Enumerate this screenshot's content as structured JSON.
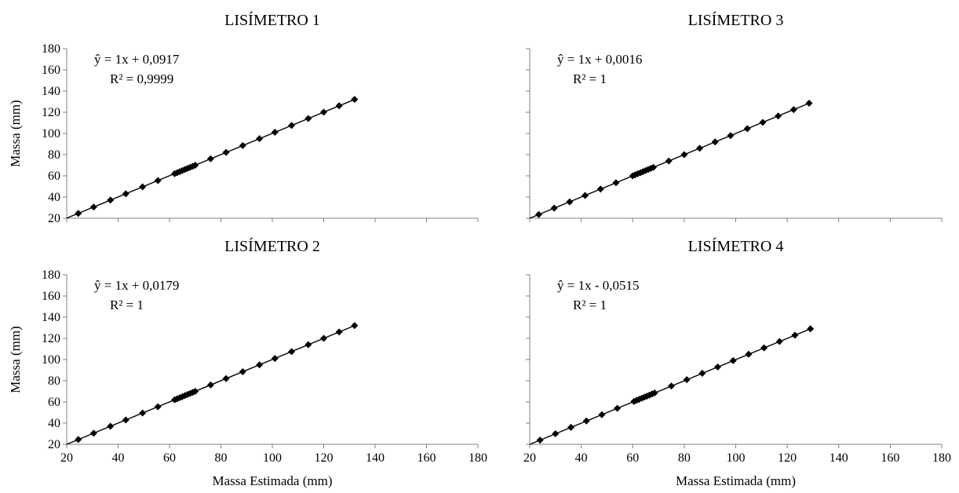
{
  "shared": {
    "ylabel": "Massa (mm)",
    "marker_color": "#000000",
    "line_color": "#000000"
  },
  "chart_data": [
    {
      "type": "scatter",
      "title": "LISÍMETRO 1",
      "equation": "ŷ = 1x + 0,0917",
      "r2": "R² = 0,9999",
      "xlabel": "",
      "ylabel": "Massa (mm)",
      "xlim": [
        20,
        180
      ],
      "ylim": [
        20,
        180
      ],
      "xticks": [
        20,
        40,
        60,
        80,
        100,
        120,
        140,
        160,
        180
      ],
      "yticks": [
        20,
        40,
        60,
        80,
        100,
        120,
        140,
        160,
        180
      ],
      "show_xtick_labels": false,
      "show_ytick_labels": true,
      "trendline": {
        "slope": 1,
        "intercept": 0.0917
      },
      "points": [
        [
          24.5,
          24.5
        ],
        [
          30.5,
          30.6
        ],
        [
          37,
          37.1
        ],
        [
          43,
          43.1
        ],
        [
          49.5,
          49.6
        ],
        [
          55.5,
          55.6
        ],
        [
          62,
          62
        ],
        [
          63,
          63
        ],
        [
          64,
          64
        ],
        [
          65,
          65
        ],
        [
          66,
          66
        ],
        [
          67,
          67
        ],
        [
          68,
          68
        ],
        [
          69,
          69
        ],
        [
          70,
          70
        ],
        [
          76,
          76.1
        ],
        [
          82,
          82.1
        ],
        [
          88.5,
          88.6
        ],
        [
          95,
          95.1
        ],
        [
          101,
          101.1
        ],
        [
          107.5,
          107.6
        ],
        [
          114,
          114.1
        ],
        [
          120,
          120.1
        ],
        [
          126,
          126.1
        ],
        [
          132,
          132.1
        ]
      ]
    },
    {
      "type": "scatter",
      "title": "LISÍMETRO 3",
      "equation": "ŷ = 1x + 0,0016",
      "r2": "R² = 1",
      "xlabel": "",
      "ylabel": "",
      "xlim": [
        20,
        180
      ],
      "ylim": [
        20,
        180
      ],
      "xticks": [
        20,
        40,
        60,
        80,
        100,
        120,
        140,
        160,
        180
      ],
      "yticks": [
        20,
        40,
        60,
        80,
        100,
        120,
        140,
        160,
        180
      ],
      "show_xtick_labels": false,
      "show_ytick_labels": false,
      "trendline": {
        "slope": 1,
        "intercept": 0.0016
      },
      "points": [
        [
          23.5,
          23.5
        ],
        [
          29.5,
          29.5
        ],
        [
          35.5,
          35.5
        ],
        [
          41.5,
          41.5
        ],
        [
          47.5,
          47.5
        ],
        [
          53.5,
          53.5
        ],
        [
          60,
          60
        ],
        [
          61,
          61
        ],
        [
          62,
          62
        ],
        [
          63,
          63
        ],
        [
          64,
          64
        ],
        [
          65,
          65
        ],
        [
          66,
          66
        ],
        [
          67,
          67
        ],
        [
          68,
          68
        ],
        [
          74,
          74
        ],
        [
          80,
          80
        ],
        [
          86,
          86
        ],
        [
          92,
          92
        ],
        [
          98,
          98
        ],
        [
          104.5,
          104.5
        ],
        [
          110.5,
          110.5
        ],
        [
          116.5,
          116.5
        ],
        [
          122.5,
          122.5
        ],
        [
          128.5,
          128.5
        ]
      ]
    },
    {
      "type": "scatter",
      "title": "LISÍMETRO 2",
      "equation": "ŷ = 1x + 0,0179",
      "r2": "R² = 1",
      "xlabel": "Massa Estimada (mm)",
      "ylabel": "Massa (mm)",
      "xlim": [
        20,
        180
      ],
      "ylim": [
        20,
        180
      ],
      "xticks": [
        20,
        40,
        60,
        80,
        100,
        120,
        140,
        160,
        180
      ],
      "yticks": [
        20,
        40,
        60,
        80,
        100,
        120,
        140,
        160,
        180
      ],
      "show_xtick_labels": true,
      "show_ytick_labels": true,
      "trendline": {
        "slope": 1,
        "intercept": 0.0179
      },
      "points": [
        [
          24.5,
          24.5
        ],
        [
          30.5,
          30.5
        ],
        [
          37,
          37
        ],
        [
          43,
          43
        ],
        [
          49.5,
          49.5
        ],
        [
          55.5,
          55.5
        ],
        [
          62,
          62
        ],
        [
          63,
          63
        ],
        [
          64,
          64
        ],
        [
          65,
          65
        ],
        [
          66,
          66
        ],
        [
          67,
          67
        ],
        [
          68,
          68
        ],
        [
          69,
          69
        ],
        [
          70,
          70
        ],
        [
          76,
          76
        ],
        [
          82,
          82
        ],
        [
          88.5,
          88.5
        ],
        [
          95,
          95
        ],
        [
          101,
          101
        ],
        [
          107.5,
          107.5
        ],
        [
          114,
          114
        ],
        [
          120,
          120
        ],
        [
          126,
          126
        ],
        [
          132,
          132
        ]
      ]
    },
    {
      "type": "scatter",
      "title": "LISÍMETRO 4",
      "equation": "ŷ = 1x - 0,0515",
      "r2": "R² = 1",
      "xlabel": "Massa  Estimada (mm)",
      "ylabel": "",
      "xlim": [
        20,
        180
      ],
      "ylim": [
        20,
        180
      ],
      "xticks": [
        20,
        40,
        60,
        80,
        100,
        120,
        140,
        160,
        180
      ],
      "yticks": [
        20,
        40,
        60,
        80,
        100,
        120,
        140,
        160,
        180
      ],
      "show_xtick_labels": true,
      "show_ytick_labels": false,
      "trendline": {
        "slope": 1,
        "intercept": -0.0515
      },
      "points": [
        [
          24,
          24
        ],
        [
          30,
          30
        ],
        [
          36,
          36
        ],
        [
          42,
          42
        ],
        [
          48,
          48
        ],
        [
          54,
          54
        ],
        [
          60.5,
          60.5
        ],
        [
          61.5,
          61.5
        ],
        [
          62.5,
          62.5
        ],
        [
          63.5,
          63.5
        ],
        [
          64.5,
          64.5
        ],
        [
          65.5,
          65.5
        ],
        [
          66.5,
          66.5
        ],
        [
          67.5,
          67.5
        ],
        [
          68.5,
          68.5
        ],
        [
          75,
          75
        ],
        [
          81,
          81
        ],
        [
          87,
          87
        ],
        [
          93,
          93
        ],
        [
          99,
          99
        ],
        [
          105,
          105
        ],
        [
          111,
          111
        ],
        [
          117,
          117
        ],
        [
          123,
          123
        ],
        [
          129,
          129
        ]
      ]
    }
  ]
}
